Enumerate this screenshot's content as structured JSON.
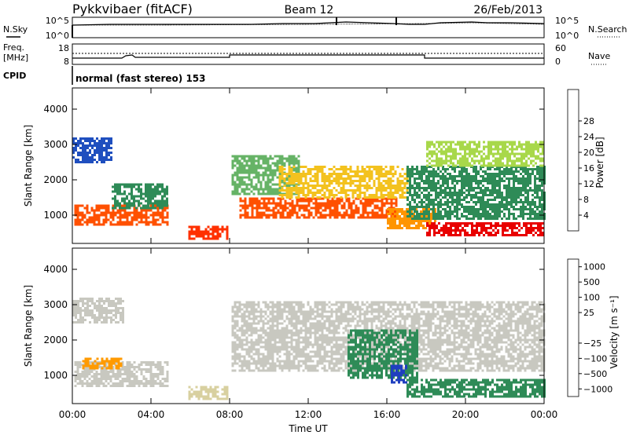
{
  "header": {
    "station": "Pykkvibaer (fitACF)",
    "beam": "Beam 12",
    "date": "26/Feb/2013"
  },
  "top_panels": {
    "nsky_label": "N.Sky",
    "nsearch_label": "N.Search",
    "noise_ticks_left": [
      "10^5",
      "10^0"
    ],
    "noise_ticks_right": [
      "10^5",
      "10^0"
    ],
    "freq_label_line1": "Freq.",
    "freq_label_line2": "[MHz]",
    "freq_ticks": [
      "18",
      "8"
    ],
    "nave_label": "Nave",
    "nave_ticks": [
      "60",
      "0"
    ],
    "cpid_label": "CPID",
    "cpid_text": "normal (fast stereo) 153"
  },
  "chart_data": [
    {
      "type": "heatmap",
      "name": "power",
      "ylabel": "Slant Range [km]",
      "ylim": [
        200,
        4600
      ],
      "yticks": [
        "1000",
        "2000",
        "3000",
        "4000"
      ],
      "ytick_values": [
        1000,
        2000,
        3000,
        4000
      ],
      "xlim": [
        0,
        24
      ],
      "colorbar_label": "Power [dB]",
      "colorbar_ticks": [
        "4",
        "8",
        "12",
        "16",
        "20",
        "24",
        "28"
      ],
      "colorbar_colors": [
        "#0000ff",
        "#1f4fbf",
        "#2e8b57",
        "#66b366",
        "#a8d84a",
        "#f3c21f",
        "#ff9500",
        "#ff5000",
        "#e80000"
      ],
      "echo_regions": [
        {
          "t0": 0.0,
          "t1": 2.0,
          "r0": 2500,
          "r1": 3200,
          "color": "#1f4fbf"
        },
        {
          "t0": 0.1,
          "t1": 4.8,
          "r0": 700,
          "r1": 1300,
          "color": "#ff5000"
        },
        {
          "t0": 2.0,
          "t1": 4.8,
          "r0": 1200,
          "r1": 1900,
          "color": "#2e8b57"
        },
        {
          "t0": 5.9,
          "t1": 7.9,
          "r0": 300,
          "r1": 700,
          "color": "#ff3000"
        },
        {
          "t0": 8.1,
          "t1": 11.5,
          "r0": 1600,
          "r1": 2700,
          "color": "#66b366"
        },
        {
          "t0": 8.5,
          "t1": 16.5,
          "r0": 900,
          "r1": 1500,
          "color": "#ff5000"
        },
        {
          "t0": 10.5,
          "t1": 17.0,
          "r0": 1500,
          "r1": 2400,
          "color": "#f3c21f"
        },
        {
          "t0": 16.0,
          "t1": 18.5,
          "r0": 600,
          "r1": 1200,
          "color": "#ff9500"
        },
        {
          "t0": 17.0,
          "t1": 24.0,
          "r0": 900,
          "r1": 2400,
          "color": "#2e8b57"
        },
        {
          "t0": 18.0,
          "t1": 24.0,
          "r0": 400,
          "r1": 800,
          "color": "#e80000"
        },
        {
          "t0": 18.0,
          "t1": 24.0,
          "r0": 2400,
          "r1": 3100,
          "color": "#a8d84a"
        }
      ]
    },
    {
      "type": "heatmap",
      "name": "velocity",
      "ylabel": "Slant Range [km]",
      "xlabel": "Time UT",
      "ylim": [
        200,
        4600
      ],
      "yticks": [
        "1000",
        "2000",
        "3000",
        "4000"
      ],
      "ytick_values": [
        1000,
        2000,
        3000,
        4000
      ],
      "xlim": [
        0,
        24
      ],
      "xticks": [
        "00:00",
        "04:00",
        "08:00",
        "12:00",
        "16:00",
        "20:00",
        "00:00"
      ],
      "xtick_values": [
        0,
        4,
        8,
        12,
        16,
        20,
        24
      ],
      "colorbar_label": "Velocity [m s⁻¹]",
      "colorbar_ticks": [
        "1000",
        "500",
        "100",
        "25",
        "−25",
        "−100",
        "−500",
        "−1000"
      ],
      "colorbar_colors": [
        "#1f3fbf",
        "#2e6fa0",
        "#2e8b57",
        "#7cc34f",
        "#c8c8c0",
        "#c8c8c0",
        "#ff9a00",
        "#ff6000",
        "#e80000"
      ],
      "echo_regions": [
        {
          "t0": 0.0,
          "t1": 2.6,
          "r0": 2500,
          "r1": 3200,
          "color": "#c8c8c0"
        },
        {
          "t0": 0.1,
          "t1": 4.8,
          "r0": 700,
          "r1": 1400,
          "color": "#c8c8c0"
        },
        {
          "t0": 0.5,
          "t1": 2.5,
          "r0": 1200,
          "r1": 1500,
          "color": "#ff9a00"
        },
        {
          "t0": 5.9,
          "t1": 7.9,
          "r0": 300,
          "r1": 700,
          "color": "#d8d0a0"
        },
        {
          "t0": 8.1,
          "t1": 24.0,
          "r0": 1100,
          "r1": 3100,
          "color": "#c8c8c0"
        },
        {
          "t0": 14.0,
          "t1": 17.5,
          "r0": 900,
          "r1": 2300,
          "color": "#2e8b57"
        },
        {
          "t0": 16.2,
          "t1": 17.0,
          "r0": 800,
          "r1": 1300,
          "color": "#1f3fbf"
        },
        {
          "t0": 17.0,
          "t1": 24.0,
          "r0": 400,
          "r1": 900,
          "color": "#2e8b57"
        }
      ]
    }
  ]
}
